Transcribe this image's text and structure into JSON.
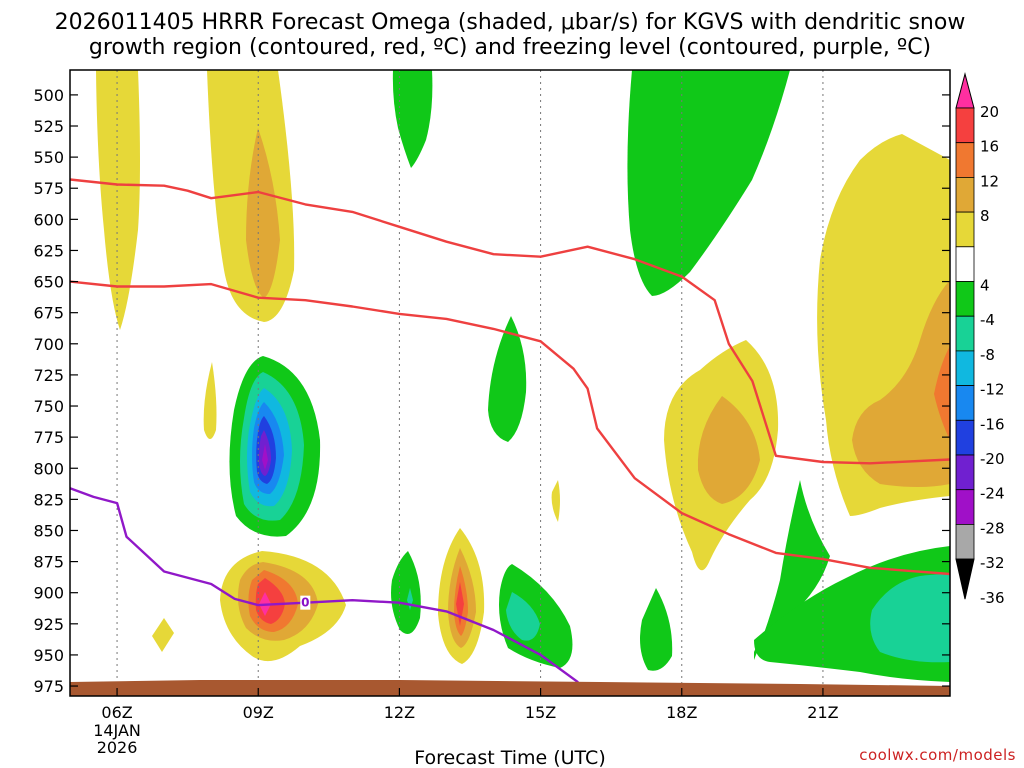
{
  "chart_data": {
    "type": "contour",
    "title_lines": [
      "2026011405 HRRR Forecast Omega (shaded, μbar/s) for KGVS with dendritic snow",
      "growth region (contoured, red, ºC) and freezing level (contoured, purple, ºC)"
    ],
    "xlabel": "Forecast Time (UTC)",
    "ylabel": "",
    "credit": "coolwx.com/models",
    "x_range_hours_utc": [
      5,
      23.7
    ],
    "y_range_mb": [
      480,
      983
    ],
    "x_ticks": [
      {
        "hour": 6,
        "label": "06Z",
        "sublabels": [
          "14JAN",
          "2026"
        ]
      },
      {
        "hour": 9,
        "label": "09Z",
        "sublabels": []
      },
      {
        "hour": 12,
        "label": "12Z",
        "sublabels": []
      },
      {
        "hour": 15,
        "label": "15Z",
        "sublabels": []
      },
      {
        "hour": 18,
        "label": "18Z",
        "sublabels": []
      },
      {
        "hour": 21,
        "label": "21Z",
        "sublabels": []
      }
    ],
    "y_ticks": [
      "500",
      "525",
      "550",
      "575",
      "600",
      "625",
      "650",
      "675",
      "700",
      "725",
      "750",
      "775",
      "800",
      "825",
      "850",
      "875",
      "900",
      "925",
      "950",
      "975"
    ],
    "colorbar": {
      "labels": [
        "20",
        "16",
        "12",
        "8",
        "4",
        "-4",
        "-8",
        "-12",
        "-16",
        "-20",
        "-24",
        "-28",
        "-32",
        "-36"
      ],
      "colors": {
        "top_arrow": "#ff2fa0",
        "16_20": "#f5403f",
        "12_16": "#f07830",
        "8_12": "#e0a836",
        "4_8": "#e6d838",
        "m4_4": "#ffffff",
        "m8_m4": "#10c818",
        "m12_m8": "#18d296",
        "m16_m12": "#10b8e0",
        "m20_m16": "#1888f0",
        "m24_m20": "#2040e0",
        "m28_m24": "#7020d0",
        "m32_m28": "#a010c8",
        "m36_m32": "#a8a8a8",
        "bottom_arrow": "#000000"
      }
    },
    "shaded_features": [
      {
        "name": "strong upward motion core",
        "hour": 9.0,
        "pressure_mb": 755,
        "min_omega": -30
      },
      {
        "name": "descent maximum",
        "hour": 9.0,
        "pressure_mb": 890,
        "max_omega": 18
      },
      {
        "name": "descent maximum",
        "hour": 13.0,
        "pressure_mb": 890,
        "max_omega": 14
      },
      {
        "name": "descent region",
        "hour": 22.5,
        "pressure_mb": 700,
        "max_omega": 12
      },
      {
        "name": "ascent region",
        "hour": 22.5,
        "pressure_mb": 910,
        "min_omega": -10
      }
    ],
    "dgz_contours": {
      "color": "#ee4040",
      "upper": [
        [
          5,
          568
        ],
        [
          6,
          572
        ],
        [
          7,
          573
        ],
        [
          7.5,
          577
        ],
        [
          8,
          583
        ],
        [
          9,
          578
        ],
        [
          10,
          588
        ],
        [
          11,
          594
        ],
        [
          12,
          606
        ],
        [
          13,
          618
        ],
        [
          14,
          628
        ],
        [
          15,
          630
        ],
        [
          16,
          622
        ],
        [
          17,
          632
        ],
        [
          18,
          646
        ],
        [
          18.7,
          665
        ],
        [
          19,
          700
        ],
        [
          19.5,
          730
        ],
        [
          20,
          790
        ],
        [
          21,
          795
        ],
        [
          22,
          796
        ],
        [
          23.7,
          793
        ]
      ],
      "lower": [
        [
          5,
          650
        ],
        [
          6,
          654
        ],
        [
          7,
          654
        ],
        [
          8,
          652
        ],
        [
          9,
          663
        ],
        [
          10,
          665
        ],
        [
          11,
          670
        ],
        [
          12,
          676
        ],
        [
          13,
          680
        ],
        [
          14,
          688
        ],
        [
          15,
          698
        ],
        [
          15.7,
          720
        ],
        [
          16,
          736
        ],
        [
          16.2,
          768
        ],
        [
          17,
          808
        ],
        [
          18,
          836
        ],
        [
          19,
          853
        ],
        [
          20,
          868
        ],
        [
          21,
          873
        ],
        [
          22,
          880
        ],
        [
          23.7,
          885
        ]
      ]
    },
    "freezing_level_contour": {
      "color": "#9018c8",
      "label": "0",
      "label_at": {
        "hour": 10,
        "pressure_mb": 908
      },
      "points": [
        [
          5,
          816
        ],
        [
          5.5,
          823
        ],
        [
          6,
          828
        ],
        [
          6.2,
          855
        ],
        [
          7,
          883
        ],
        [
          8,
          893
        ],
        [
          8.5,
          905
        ],
        [
          9,
          910
        ],
        [
          10,
          908
        ],
        [
          11,
          906
        ],
        [
          12,
          908
        ],
        [
          13,
          915
        ],
        [
          14,
          930
        ],
        [
          15,
          950
        ],
        [
          15.8,
          972
        ]
      ]
    },
    "terrain_fill_color": "#a85830"
  }
}
